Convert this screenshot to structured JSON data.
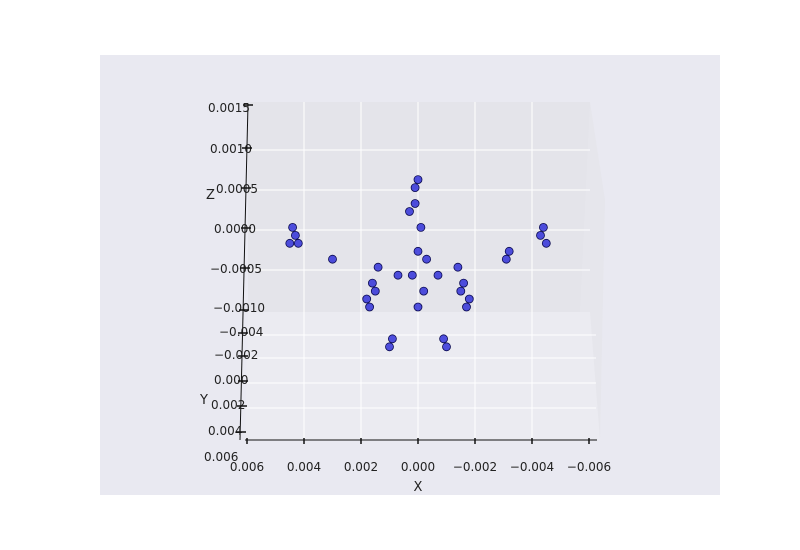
{
  "chart_data": {
    "type": "scatter",
    "projection": "3d",
    "title": "",
    "xlabel": "X",
    "ylabel": "Y",
    "zlabel": "Z",
    "x_ticks": [
      "0.006",
      "0.004",
      "0.002",
      "0.000",
      "−0.002",
      "−0.004",
      "−0.006"
    ],
    "y_ticks": [
      "−0.004",
      "−0.002",
      "0.000",
      "0.002",
      "0.004",
      "0.006"
    ],
    "z_ticks": [
      "0.0015",
      "0.0010",
      "0.0005",
      "0.0000",
      "−0.0005",
      "−0.0010"
    ],
    "xlim": [
      0.006,
      -0.006
    ],
    "zlim": [
      -0.001,
      0.0015
    ],
    "grid": true,
    "colors": {
      "figure_bg": "#ffffff",
      "axes_bg": "#e9e9f1",
      "pane": "#e4e4ea",
      "grid": "#ffffff",
      "marker": "#1a1ad6",
      "marker_edge": "#0a0a50"
    },
    "series": [
      {
        "points": [
          [
            0.0,
            0.0006
          ],
          [
            0.0001,
            0.0003
          ],
          [
            -0.0001,
            0.0
          ],
          [
            0.0,
            -0.0003
          ],
          [
            0.0002,
            -0.0006
          ],
          [
            -0.0002,
            -0.0008
          ],
          [
            0.0003,
            0.0002
          ],
          [
            -0.0003,
            -0.0004
          ],
          [
            0.0,
            -0.001
          ],
          [
            0.0001,
            0.0005
          ],
          [
            0.0016,
            -0.0007
          ],
          [
            0.0018,
            -0.0009
          ],
          [
            0.0014,
            -0.0005
          ],
          [
            0.0017,
            -0.001
          ],
          [
            0.0015,
            -0.0008
          ],
          [
            -0.0016,
            -0.0007
          ],
          [
            -0.0018,
            -0.0009
          ],
          [
            -0.0014,
            -0.0005
          ],
          [
            -0.0017,
            -0.001
          ],
          [
            -0.0015,
            -0.0008
          ],
          [
            0.0007,
            -0.0006
          ],
          [
            -0.0007,
            -0.0006
          ],
          [
            0.0009,
            -0.0014
          ],
          [
            0.001,
            -0.0015
          ],
          [
            -0.0009,
            -0.0014
          ],
          [
            -0.001,
            -0.0015
          ],
          [
            0.0044,
            0.0
          ],
          [
            0.0043,
            -0.0001
          ],
          [
            0.0045,
            -0.0002
          ],
          [
            0.0042,
            -0.0002
          ],
          [
            0.003,
            -0.0004
          ],
          [
            -0.0031,
            -0.0004
          ],
          [
            -0.0032,
            -0.0003
          ],
          [
            -0.0043,
            -0.0001
          ],
          [
            -0.0044,
            0.0
          ],
          [
            -0.0045,
            -0.0002
          ]
        ]
      }
    ]
  }
}
